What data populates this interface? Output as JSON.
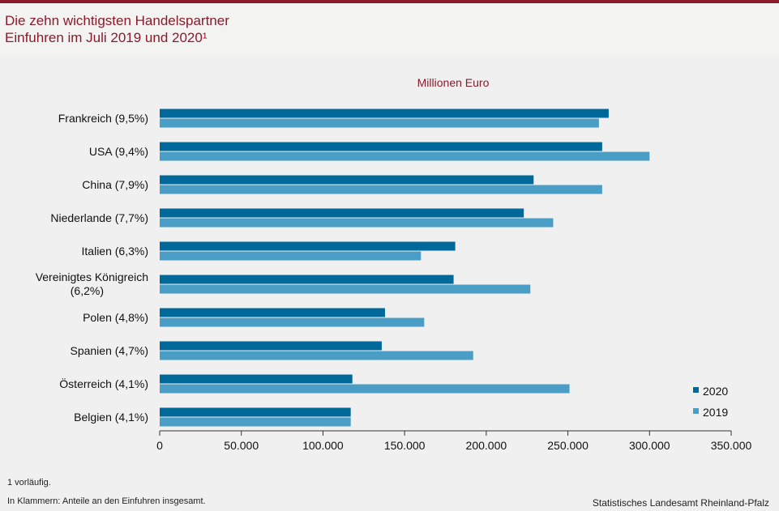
{
  "header": {
    "title_line1": "Die zehn wichtigsten Handelspartner",
    "title_line2": "Einfuhren im Juli 2019 und 2020¹"
  },
  "chart_data": {
    "type": "bar",
    "orientation": "horizontal",
    "unit_label": "Millionen  Euro",
    "categories": [
      [
        "Frankreich (9,5%)"
      ],
      [
        "USA (9,4%)"
      ],
      [
        "China (7,9%)"
      ],
      [
        "Niederlande (7,7%)"
      ],
      [
        "Italien (6,3%)"
      ],
      [
        "Vereinigtes Königreich",
        "(6,2%)"
      ],
      [
        "Polen (4,8%)"
      ],
      [
        "Spanien (4,7%)"
      ],
      [
        "Österreich (4,1%)"
      ],
      [
        "Belgien (4,1%)"
      ]
    ],
    "series": [
      {
        "name": "2020",
        "color": "#00699a",
        "values": [
          275000,
          271000,
          229000,
          223000,
          181000,
          180000,
          138000,
          136000,
          118000,
          117000
        ]
      },
      {
        "name": "2019",
        "color": "#4a9ec6",
        "values": [
          269000,
          300000,
          271000,
          241000,
          160000,
          227000,
          162000,
          192000,
          251000,
          117000
        ]
      }
    ],
    "xlim": [
      0,
      350000
    ],
    "x_ticks": [
      0,
      50000,
      100000,
      150000,
      200000,
      250000,
      300000,
      350000
    ],
    "x_tick_labels": [
      "0",
      "50.000",
      "100.000",
      "150.000",
      "200.000",
      "250.000",
      "300.000",
      "350.000"
    ],
    "legend_position": "bottom-right",
    "grid": false
  },
  "footer": {
    "note1": "1 vorläufig.",
    "note2": "In Klammern: Anteile an den Einfuhren  insgesamt.",
    "source": "Statistisches  Landesamt  Rheinland-Pfalz"
  }
}
